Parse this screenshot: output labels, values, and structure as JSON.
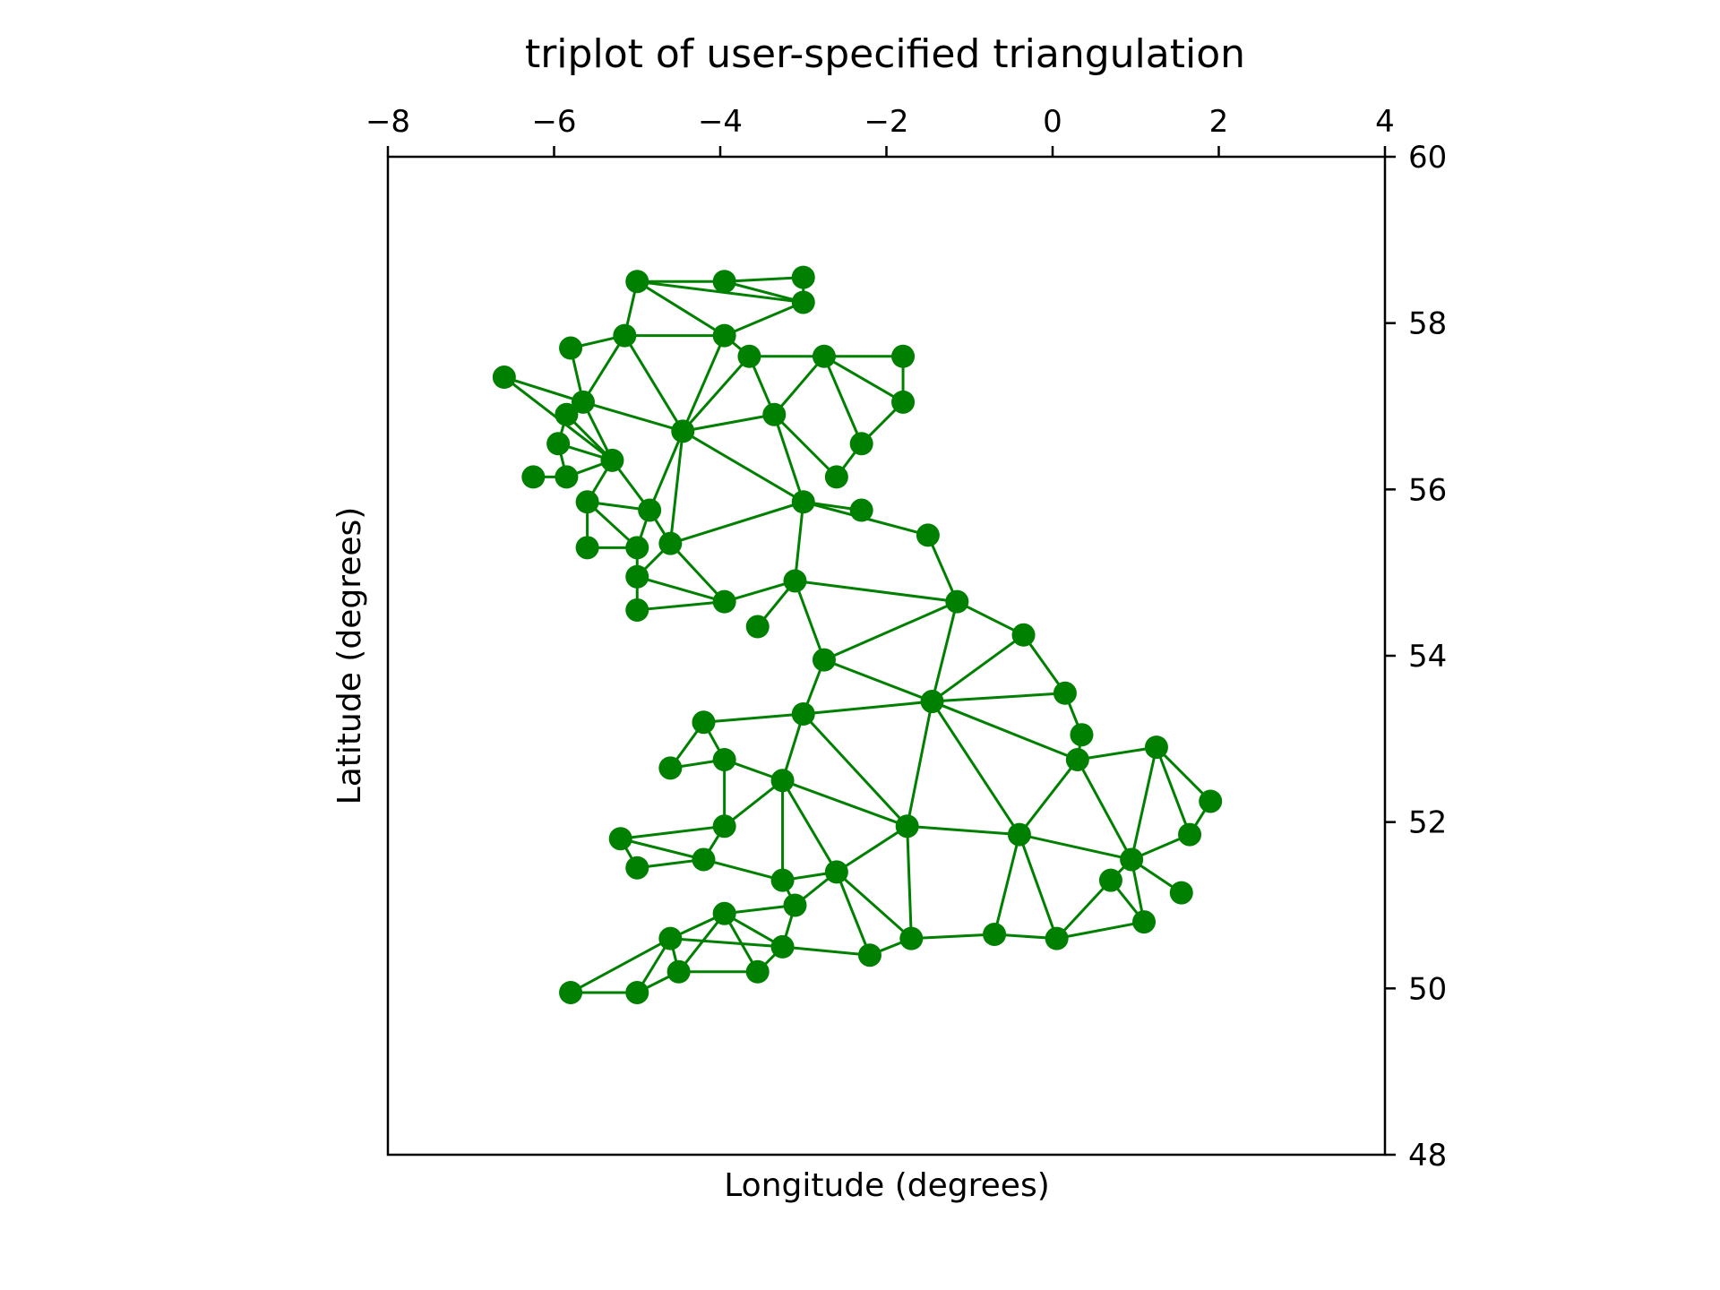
{
  "chart_data": {
    "type": "scatter",
    "subtype": "triplot",
    "title": "triplot of user-specified triangulation",
    "xlabel": "Longitude (degrees)",
    "ylabel": "Latitude (degrees)",
    "xlim": [
      -8,
      4
    ],
    "ylim": [
      48,
      60
    ],
    "x_ticks": [
      -8,
      -6,
      -4,
      -2,
      0,
      2,
      4
    ],
    "x_tick_labels": [
      "−8",
      "−6",
      "−4",
      "−2",
      "0",
      "2",
      "4"
    ],
    "y_ticks": [
      48,
      50,
      52,
      54,
      56,
      58,
      60
    ],
    "y_tick_labels": [
      "48",
      "50",
      "52",
      "54",
      "56",
      "58",
      "60"
    ],
    "x_axis_position": "top",
    "y_axis_position": "right",
    "grid": false,
    "color": "#008000",
    "points": [
      [
        -5.0,
        58.5
      ],
      [
        -3.95,
        58.5
      ],
      [
        -3.0,
        58.55
      ],
      [
        -3.0,
        58.25
      ],
      [
        -5.8,
        57.7
      ],
      [
        -5.15,
        57.85
      ],
      [
        -3.95,
        57.85
      ],
      [
        -3.65,
        57.6
      ],
      [
        -2.75,
        57.6
      ],
      [
        -1.8,
        57.6
      ],
      [
        -6.6,
        57.35
      ],
      [
        -5.65,
        57.05
      ],
      [
        -5.85,
        56.9
      ],
      [
        -4.45,
        56.7
      ],
      [
        -3.35,
        56.9
      ],
      [
        -1.8,
        57.05
      ],
      [
        -5.95,
        56.55
      ],
      [
        -5.3,
        56.35
      ],
      [
        -6.25,
        56.15
      ],
      [
        -5.85,
        56.15
      ],
      [
        -2.3,
        56.55
      ],
      [
        -2.6,
        56.15
      ],
      [
        -5.6,
        55.85
      ],
      [
        -4.85,
        55.75
      ],
      [
        -3.0,
        55.85
      ],
      [
        -2.3,
        55.75
      ],
      [
        -1.5,
        55.45
      ],
      [
        -5.6,
        55.3
      ],
      [
        -5.0,
        55.3
      ],
      [
        -4.6,
        55.35
      ],
      [
        -5.0,
        54.95
      ],
      [
        -3.1,
        54.9
      ],
      [
        -5.0,
        54.55
      ],
      [
        -3.95,
        54.65
      ],
      [
        -1.15,
        54.65
      ],
      [
        -3.55,
        54.35
      ],
      [
        -0.35,
        54.25
      ],
      [
        -2.75,
        53.95
      ],
      [
        0.15,
        53.55
      ],
      [
        -1.45,
        53.45
      ],
      [
        0.35,
        53.05
      ],
      [
        -4.2,
        53.2
      ],
      [
        -3.0,
        53.3
      ],
      [
        -4.6,
        52.65
      ],
      [
        -3.95,
        52.75
      ],
      [
        0.3,
        52.75
      ],
      [
        1.25,
        52.9
      ],
      [
        -3.25,
        52.5
      ],
      [
        1.9,
        52.25
      ],
      [
        -3.95,
        51.95
      ],
      [
        -1.75,
        51.95
      ],
      [
        -0.4,
        51.85
      ],
      [
        1.65,
        51.85
      ],
      [
        -5.2,
        51.8
      ],
      [
        -4.2,
        51.55
      ],
      [
        -5.0,
        51.45
      ],
      [
        -3.25,
        51.3
      ],
      [
        -2.6,
        51.4
      ],
      [
        0.95,
        51.55
      ],
      [
        0.7,
        51.3
      ],
      [
        1.55,
        51.15
      ],
      [
        -3.1,
        51.0
      ],
      [
        -3.95,
        50.9
      ],
      [
        -4.6,
        50.6
      ],
      [
        -3.25,
        50.5
      ],
      [
        -2.2,
        50.4
      ],
      [
        -1.7,
        50.6
      ],
      [
        -0.7,
        50.65
      ],
      [
        0.05,
        50.6
      ],
      [
        1.1,
        50.8
      ],
      [
        -5.8,
        49.95
      ],
      [
        -5.0,
        49.95
      ],
      [
        -4.5,
        50.2
      ],
      [
        -3.55,
        50.2
      ]
    ],
    "edges": [
      [
        0,
        1
      ],
      [
        1,
        2
      ],
      [
        1,
        3
      ],
      [
        2,
        3
      ],
      [
        0,
        3
      ],
      [
        0,
        6
      ],
      [
        0,
        5
      ],
      [
        5,
        6
      ],
      [
        6,
        3
      ],
      [
        4,
        5
      ],
      [
        4,
        11
      ],
      [
        5,
        11
      ],
      [
        5,
        13
      ],
      [
        6,
        13
      ],
      [
        6,
        7
      ],
      [
        7,
        8
      ],
      [
        8,
        9
      ],
      [
        9,
        15
      ],
      [
        7,
        13
      ],
      [
        7,
        14
      ],
      [
        8,
        14
      ],
      [
        13,
        14
      ],
      [
        8,
        15
      ],
      [
        15,
        20
      ],
      [
        8,
        20
      ],
      [
        14,
        21
      ],
      [
        20,
        21
      ],
      [
        14,
        24
      ],
      [
        13,
        24
      ],
      [
        11,
        13
      ],
      [
        10,
        11
      ],
      [
        10,
        17
      ],
      [
        11,
        12
      ],
      [
        12,
        17
      ],
      [
        11,
        17
      ],
      [
        12,
        16
      ],
      [
        16,
        17
      ],
      [
        16,
        19
      ],
      [
        18,
        19
      ],
      [
        17,
        19
      ],
      [
        17,
        22
      ],
      [
        17,
        23
      ],
      [
        13,
        23
      ],
      [
        22,
        23
      ],
      [
        22,
        27
      ],
      [
        22,
        28
      ],
      [
        23,
        28
      ],
      [
        27,
        28
      ],
      [
        13,
        29
      ],
      [
        23,
        29
      ],
      [
        29,
        30
      ],
      [
        28,
        30
      ],
      [
        29,
        24
      ],
      [
        29,
        33
      ],
      [
        30,
        33
      ],
      [
        30,
        32
      ],
      [
        32,
        33
      ],
      [
        24,
        31
      ],
      [
        33,
        31
      ],
      [
        31,
        35
      ],
      [
        24,
        25
      ],
      [
        24,
        26
      ],
      [
        26,
        34
      ],
      [
        31,
        34
      ],
      [
        31,
        37
      ],
      [
        34,
        37
      ],
      [
        34,
        36
      ],
      [
        34,
        39
      ],
      [
        37,
        39
      ],
      [
        36,
        39
      ],
      [
        36,
        38
      ],
      [
        38,
        39
      ],
      [
        38,
        40
      ],
      [
        40,
        45
      ],
      [
        39,
        45
      ],
      [
        37,
        42
      ],
      [
        39,
        42
      ],
      [
        41,
        42
      ],
      [
        41,
        43
      ],
      [
        41,
        44
      ],
      [
        43,
        44
      ],
      [
        44,
        47
      ],
      [
        42,
        47
      ],
      [
        44,
        49
      ],
      [
        47,
        49
      ],
      [
        47,
        56
      ],
      [
        47,
        57
      ],
      [
        42,
        50
      ],
      [
        39,
        50
      ],
      [
        50,
        57
      ],
      [
        47,
        50
      ],
      [
        45,
        51
      ],
      [
        39,
        51
      ],
      [
        45,
        46
      ],
      [
        46,
        52
      ],
      [
        46,
        58
      ],
      [
        45,
        58
      ],
      [
        48,
        52
      ],
      [
        46,
        48
      ],
      [
        51,
        58
      ],
      [
        51,
        50
      ],
      [
        50,
        66
      ],
      [
        51,
        67
      ],
      [
        51,
        68
      ],
      [
        68,
        69
      ],
      [
        58,
        69
      ],
      [
        58,
        59
      ],
      [
        59,
        69
      ],
      [
        58,
        60
      ],
      [
        59,
        68
      ],
      [
        52,
        58
      ],
      [
        53,
        54
      ],
      [
        53,
        55
      ],
      [
        54,
        55
      ],
      [
        49,
        54
      ],
      [
        49,
        53
      ],
      [
        54,
        56
      ],
      [
        56,
        57
      ],
      [
        57,
        61
      ],
      [
        56,
        61
      ],
      [
        57,
        65
      ],
      [
        57,
        66
      ],
      [
        65,
        66
      ],
      [
        66,
        67
      ],
      [
        67,
        68
      ],
      [
        61,
        62
      ],
      [
        61,
        64
      ],
      [
        62,
        64
      ],
      [
        62,
        63
      ],
      [
        63,
        64
      ],
      [
        63,
        72
      ],
      [
        62,
        72
      ],
      [
        62,
        73
      ],
      [
        64,
        73
      ],
      [
        64,
        65
      ],
      [
        70,
        71
      ],
      [
        70,
        63
      ],
      [
        71,
        63
      ],
      [
        71,
        72
      ],
      [
        72,
        73
      ]
    ]
  }
}
